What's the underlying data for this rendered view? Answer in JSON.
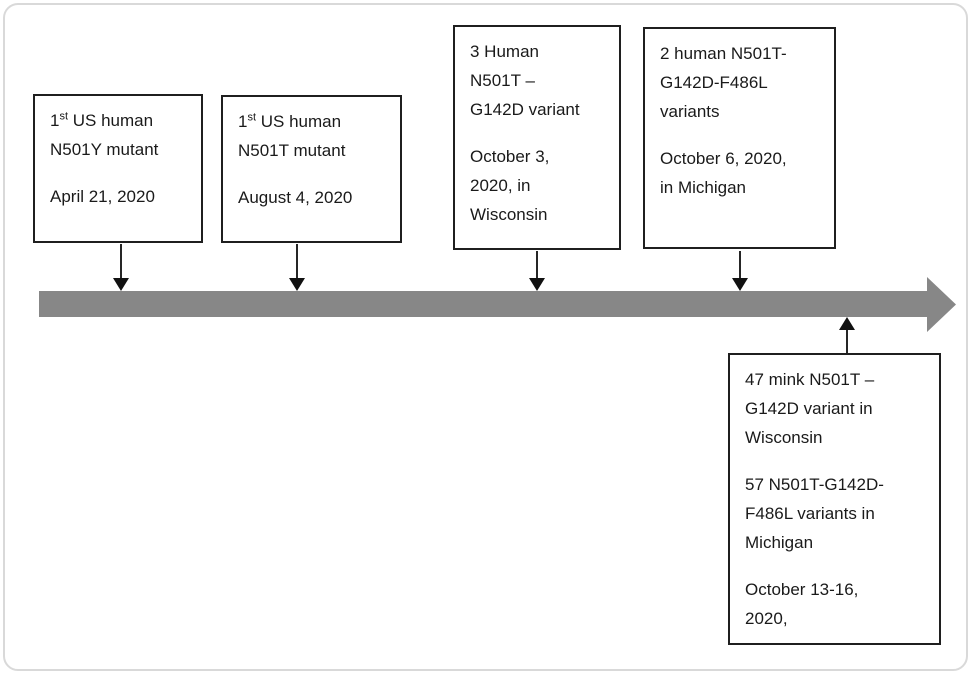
{
  "figure": {
    "type": "timeline-diagram",
    "bar_color": "#878787",
    "box_border_color": "#1f1f1f",
    "text_color": "#1a1a1a",
    "connector_color": "#111111"
  },
  "events_above": [
    {
      "name": "first-us-human-n501y",
      "heading": {
        "prefix": "1",
        "sup": "st",
        "rest": " US human",
        "line2": "N501Y mutant"
      },
      "date": [
        "April 21, 2020"
      ]
    },
    {
      "name": "first-us-human-n501t",
      "heading": {
        "prefix": "1",
        "sup": "st",
        "rest": " US human",
        "line2": "N501T mutant"
      },
      "date": [
        "August 4, 2020"
      ]
    },
    {
      "name": "three-human-n501t-g142d",
      "heading_lines": [
        "3 Human",
        "N501T –",
        "G142D variant"
      ],
      "date": [
        "October 3,",
        "2020, in",
        "Wisconsin"
      ]
    },
    {
      "name": "two-human-n501t-g142d-f486l",
      "heading_lines": [
        "2 human N501T-",
        "G142D-F486L",
        "variants"
      ],
      "date": [
        "October 6, 2020,",
        "in Michigan"
      ]
    }
  ],
  "event_below": {
    "name": "mink-and-human-variant-counts",
    "paragraph1": [
      "47 mink N501T –",
      "G142D variant in",
      "Wisconsin"
    ],
    "paragraph2": [
      "57 N501T-G142D-",
      "F486L variants in",
      "Michigan"
    ],
    "date": [
      "October 13-16,",
      "2020,"
    ]
  }
}
